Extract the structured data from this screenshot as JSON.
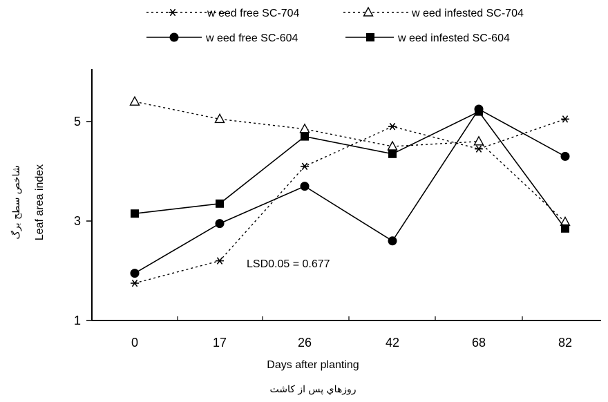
{
  "chart_data": {
    "type": "line",
    "categories": [
      "0",
      "17",
      "26",
      "42",
      "68",
      "82"
    ],
    "x": [
      0,
      17,
      26,
      42,
      68,
      82
    ],
    "xlabel": "Days after planting",
    "xlabel_fa": "روزهاي پس از كاشت",
    "ylabel": "Leaf area index",
    "ylabel_fa": "شاخص سطح برگ",
    "ylim": [
      1,
      6
    ],
    "yticks": [
      1,
      3,
      5
    ],
    "grid": false,
    "legend_position": "top",
    "annotation": "LSD0.05 = 0.677",
    "series": [
      {
        "name": "w eed free SC-704",
        "marker": "asterisk",
        "line": "dotted",
        "values": [
          1.75,
          2.2,
          4.1,
          4.9,
          4.45,
          5.05
        ]
      },
      {
        "name": "w eed infested SC-704",
        "marker": "triangle-open",
        "line": "dotted",
        "values": [
          5.4,
          5.05,
          4.85,
          4.5,
          4.6,
          2.98
        ]
      },
      {
        "name": "w eed free SC-604",
        "marker": "circle",
        "line": "solid",
        "values": [
          1.95,
          2.95,
          3.7,
          2.6,
          5.25,
          4.3
        ]
      },
      {
        "name": "w eed infested SC-604",
        "marker": "square",
        "line": "solid",
        "values": [
          3.15,
          3.35,
          4.7,
          4.35,
          5.2,
          2.85
        ]
      }
    ]
  }
}
